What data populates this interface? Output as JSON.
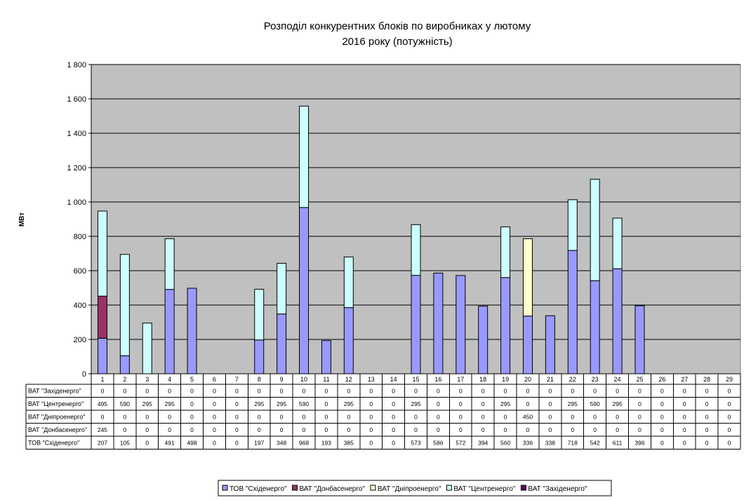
{
  "chart_data": {
    "type": "bar",
    "stacked": true,
    "title_line1": "Розподіл конкурентних блоків по виробниках у лютому",
    "title_line2": "2016 року (потужність)",
    "ylabel": "МВт",
    "xlabel": "",
    "ylim": [
      0,
      1800
    ],
    "yticks": [
      0,
      200,
      400,
      600,
      800,
      1000,
      1200,
      1400,
      1600,
      1800
    ],
    "ytick_labels": [
      "0",
      "200",
      "400",
      "600",
      "800",
      "1 000",
      "1 200",
      "1 400",
      "1 600",
      "1 800"
    ],
    "grid": true,
    "legend_position": "bottom",
    "categories": [
      "1",
      "2",
      "3",
      "4",
      "5",
      "6",
      "7",
      "8",
      "9",
      "10",
      "11",
      "12",
      "13",
      "14",
      "15",
      "16",
      "17",
      "18",
      "19",
      "20",
      "21",
      "22",
      "23",
      "24",
      "25",
      "26",
      "27",
      "28",
      "29"
    ],
    "series": [
      {
        "name": "ТОВ \"Східенерго\"",
        "color": "#9999ff",
        "values": [
          207,
          105,
          0,
          491,
          498,
          0,
          0,
          197,
          348,
          968,
          193,
          385,
          0,
          0,
          573,
          586,
          572,
          394,
          560,
          336,
          338,
          718,
          542,
          611,
          396,
          0,
          0,
          0,
          0
        ]
      },
      {
        "name": "ВАТ \"Донбасенерго\"",
        "color": "#993366",
        "values": [
          245,
          0,
          0,
          0,
          0,
          0,
          0,
          0,
          0,
          0,
          0,
          0,
          0,
          0,
          0,
          0,
          0,
          0,
          0,
          0,
          0,
          0,
          0,
          0,
          0,
          0,
          0,
          0,
          0
        ]
      },
      {
        "name": "ВАТ \"Дніпроенерго\"",
        "color": "#ffffcc",
        "values": [
          0,
          0,
          0,
          0,
          0,
          0,
          0,
          0,
          0,
          0,
          0,
          0,
          0,
          0,
          0,
          0,
          0,
          0,
          0,
          450,
          0,
          0,
          0,
          0,
          0,
          0,
          0,
          0,
          0
        ]
      },
      {
        "name": "ВАТ \"Центренерго\"",
        "color": "#ccffff",
        "values": [
          495,
          590,
          295,
          295,
          0,
          0,
          0,
          295,
          295,
          590,
          0,
          295,
          0,
          0,
          295,
          0,
          0,
          0,
          295,
          0,
          0,
          295,
          590,
          295,
          0,
          0,
          0,
          0,
          0
        ]
      },
      {
        "name": "ВАТ \"Західенерго\"",
        "color": "#660066",
        "values": [
          0,
          0,
          0,
          0,
          0,
          0,
          0,
          0,
          0,
          0,
          0,
          0,
          0,
          0,
          0,
          0,
          0,
          0,
          0,
          0,
          0,
          0,
          0,
          0,
          0,
          0,
          0,
          0,
          0
        ]
      }
    ],
    "table_row_order": [
      4,
      3,
      2,
      1,
      0
    ]
  }
}
